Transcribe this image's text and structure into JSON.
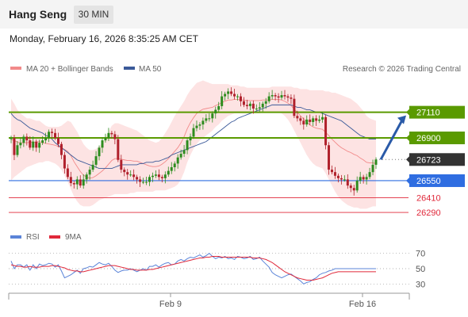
{
  "header": {
    "instrument": "Hang Seng",
    "timeframe": "30 MIN"
  },
  "datetime": "Monday, February 16, 2026 8:35:25 AM CET",
  "legend": {
    "bb_label": "MA 20 + Bollinger Bands",
    "ma_label": "MA 50",
    "credit": "Research © 2026 Trading Central"
  },
  "rsi_legend": {
    "rsi_label": "RSI",
    "ma_label": "9MA"
  },
  "colors": {
    "bb_fill": "#fde3e3",
    "bb_line": "#f28a8a",
    "ma50": "#3b5a99",
    "green": "#5a9a00",
    "blue": "#2f6de1",
    "red": "#e0283a",
    "last": "#333333",
    "candle_up": "#2d8c1e",
    "candle_down": "#b0212c",
    "rsi": "#5b84d8",
    "rsi_ma": "#e0283a"
  },
  "chart_data": [
    {
      "type": "candlestick",
      "x_ticks": [
        "Feb 9",
        "Feb 16"
      ],
      "ylim": [
        26180,
        27380
      ],
      "levels": [
        {
          "value": 27110,
          "label": "27110",
          "style": "green-box"
        },
        {
          "value": 26900,
          "label": "26900",
          "style": "green-box"
        },
        {
          "value": 26723,
          "label": "26723",
          "style": "dark-box"
        },
        {
          "value": 26550,
          "label": "26550",
          "style": "blue-box"
        },
        {
          "value": 26410,
          "label": "26410",
          "style": "red-text"
        },
        {
          "value": 26290,
          "label": "26290",
          "style": "red-text"
        }
      ],
      "forecast_arrow": {
        "from": 26723,
        "to": 27110
      },
      "close": [
        26900,
        26760,
        26840,
        26860,
        26910,
        26880,
        26820,
        26870,
        26820,
        26860,
        26880,
        26900,
        26950,
        26940,
        26900,
        26850,
        26760,
        26650,
        26580,
        26530,
        26520,
        26560,
        26510,
        26560,
        26600,
        26640,
        26680,
        26750,
        26820,
        26880,
        26900,
        26940,
        26930,
        26890,
        26720,
        26640,
        26620,
        26600,
        26600,
        26580,
        26560,
        26540,
        26540,
        26540,
        26580,
        26590,
        26600,
        26580,
        26570,
        26600,
        26630,
        26660,
        26690,
        26740,
        26770,
        26800,
        26880,
        26910,
        26980,
        27000,
        27010,
        27040,
        27060,
        27060,
        27100,
        27130,
        27160,
        27240,
        27260,
        27280,
        27260,
        27240,
        27240,
        27200,
        27170,
        27160,
        27180,
        27140,
        27140,
        27150,
        27180,
        27200,
        27240,
        27250,
        27240,
        27230,
        27250,
        27240,
        27230,
        27220,
        27080,
        27060,
        27040,
        27010,
        27050,
        27030,
        27060,
        27040,
        27050,
        27070,
        26840,
        26640,
        26620,
        26590,
        26570,
        26560,
        26560,
        26510,
        26490,
        26470,
        26550,
        26580,
        26560,
        26580,
        26620,
        26680,
        26723
      ],
      "bb_upper": [
        27220,
        27180,
        27130,
        27100,
        27080,
        27060,
        27060,
        27050,
        27040,
        27040,
        27020,
        27000,
        26990,
        26990,
        26990,
        26990,
        27000,
        27020,
        27040,
        27030,
        26990,
        26950,
        26900,
        26850,
        26820,
        26800,
        26800,
        26810,
        26830,
        26860,
        26900,
        26950,
        27000,
        27020,
        27020,
        27010,
        27000,
        26990,
        26980,
        26970,
        26960,
        26940,
        26920,
        26900,
        26880,
        26870,
        26860,
        26870,
        26900,
        26940,
        26980,
        27030,
        27080,
        27120,
        27160,
        27200,
        27250,
        27290,
        27320,
        27350,
        27360,
        27370,
        27360,
        27350,
        27340,
        27340,
        27340,
        27340,
        27340,
        27340,
        27330,
        27330,
        27330,
        27320,
        27320,
        27310,
        27310,
        27310,
        27310,
        27310,
        27310,
        27310,
        27310,
        27320,
        27320,
        27320,
        27320,
        27320,
        27320,
        27320,
        27310,
        27310,
        27300,
        27300,
        27300,
        27290,
        27290,
        27290,
        27290,
        27290,
        27280,
        27280,
        27270,
        27270,
        27260,
        27250,
        27240,
        27230,
        27220,
        27200,
        27180,
        27150,
        27120,
        27080,
        27060,
        27050,
        27040
      ],
      "bb_lower": [
        26550,
        26580,
        26600,
        26620,
        26640,
        26660,
        26670,
        26680,
        26690,
        26700,
        26700,
        26710,
        26710,
        26700,
        26690,
        26670,
        26640,
        26590,
        26540,
        26480,
        26420,
        26380,
        26350,
        26340,
        26340,
        26340,
        26350,
        26370,
        26390,
        26400,
        26410,
        26420,
        26430,
        26440,
        26440,
        26440,
        26440,
        26440,
        26450,
        26450,
        26460,
        26460,
        26460,
        26460,
        26460,
        26460,
        26470,
        26470,
        26470,
        26470,
        26480,
        26490,
        26500,
        26520,
        26560,
        26620,
        26700,
        26760,
        26810,
        26850,
        26880,
        26900,
        26920,
        26940,
        26960,
        26990,
        27010,
        27040,
        27060,
        27080,
        27090,
        27100,
        27100,
        27100,
        27100,
        27100,
        27100,
        27100,
        27100,
        27100,
        27110,
        27110,
        27110,
        27110,
        27110,
        27110,
        27100,
        27080,
        27050,
        27010,
        26960,
        26910,
        26860,
        26810,
        26760,
        26720,
        26690,
        26670,
        26660,
        26650,
        26610,
        26560,
        26510,
        26460,
        26420,
        26390,
        26370,
        26350,
        26340,
        26330,
        26330,
        26320,
        26320,
        26320,
        26330,
        26340,
        26340
      ],
      "ma50": [
        27100,
        27070,
        27050,
        27040,
        27020,
        27000,
        26980,
        26970,
        26960,
        26950,
        26940,
        26920,
        26910,
        26890,
        26860,
        26840,
        26820,
        26800,
        26780,
        26760,
        26740,
        26720,
        26710,
        26700,
        26690,
        26680,
        26670,
        26660,
        26650,
        26650,
        26650,
        26650,
        26650,
        26660,
        26670,
        26680,
        26680,
        26680,
        26680,
        26680,
        26680,
        26690,
        26690,
        26700,
        26700,
        26700,
        26710,
        26710,
        26720,
        26730,
        26740,
        26760,
        26770,
        26780,
        26790,
        26800,
        26810,
        26820,
        26830,
        26840,
        26850,
        26860,
        26870,
        26890,
        26910,
        26930,
        26950,
        26970,
        26990,
        27010,
        27030,
        27040,
        27060,
        27070,
        27080,
        27090,
        27100,
        27110,
        27120,
        27130,
        27140,
        27150,
        27160,
        27170,
        27170,
        27170,
        27170,
        27170,
        27170,
        27170,
        27160,
        27150,
        27150,
        27140,
        27130,
        27130,
        27120,
        27110,
        27110,
        27100,
        27090,
        27080,
        27070,
        27060,
        27050,
        27040,
        27020,
        27000,
        26980,
        26960,
        26940,
        26920,
        26910,
        26900,
        26890,
        26890,
        26890
      ]
    },
    {
      "type": "line",
      "name": "RSI panel",
      "y_ticks": [
        70,
        50,
        30
      ],
      "ylim": [
        20,
        80
      ],
      "series": [
        {
          "name": "RSI",
          "values": [
            60,
            50,
            55,
            55,
            52,
            55,
            48,
            55,
            50,
            56,
            54,
            55,
            57,
            56,
            52,
            55,
            47,
            38,
            40,
            42,
            45,
            48,
            44,
            50,
            51,
            53,
            52,
            55,
            58,
            56,
            55,
            57,
            53,
            48,
            45,
            47,
            48,
            48,
            50,
            48,
            46,
            48,
            50,
            48,
            53,
            53,
            55,
            52,
            55,
            57,
            58,
            55,
            56,
            60,
            62,
            60,
            63,
            65,
            64,
            66,
            68,
            65,
            67,
            70,
            66,
            63,
            65,
            64,
            66,
            63,
            64,
            62,
            66,
            65,
            63,
            64,
            66,
            62,
            63,
            65,
            60,
            56,
            52,
            45,
            42,
            40,
            38,
            40,
            42,
            43,
            40,
            37,
            34,
            30,
            32,
            33,
            36,
            38,
            42,
            44,
            45,
            47,
            48,
            50,
            50,
            50,
            50,
            50,
            50,
            50,
            50,
            50,
            50,
            50,
            50,
            50,
            50
          ]
        },
        {
          "name": "9MA",
          "values": [
            55,
            54,
            53,
            53,
            52,
            52,
            53,
            52,
            52,
            52,
            53,
            53,
            53,
            54,
            54,
            53,
            52,
            51,
            49,
            48,
            47,
            47,
            46,
            46,
            47,
            48,
            49,
            50,
            51,
            52,
            53,
            54,
            54,
            54,
            53,
            52,
            51,
            50,
            49,
            49,
            48,
            48,
            48,
            48,
            49,
            49,
            50,
            51,
            52,
            53,
            54,
            55,
            56,
            57,
            58,
            59,
            60,
            61,
            62,
            63,
            64,
            64,
            65,
            65,
            66,
            66,
            66,
            65,
            65,
            65,
            65,
            65,
            65,
            65,
            65,
            65,
            65,
            64,
            64,
            64,
            63,
            62,
            60,
            58,
            55,
            52,
            49,
            46,
            44,
            42,
            40,
            38,
            37,
            36,
            35,
            35,
            35,
            36,
            37,
            38,
            40,
            42,
            44,
            45,
            46,
            46,
            46,
            46,
            46,
            46,
            46,
            46,
            46,
            46,
            46,
            46,
            46
          ]
        }
      ]
    }
  ]
}
